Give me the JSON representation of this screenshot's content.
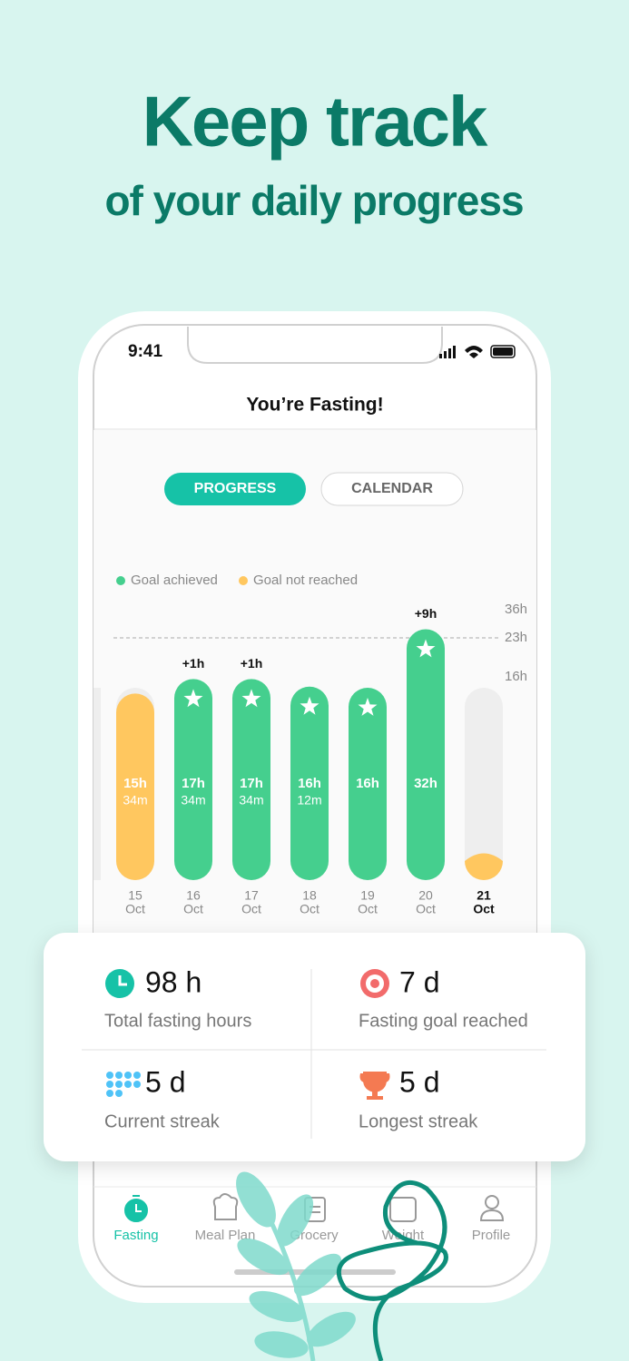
{
  "header": {
    "title": "Keep track",
    "subtitle": "of your daily progress"
  },
  "status_bar": {
    "time": "9:41"
  },
  "screen_title": "You’re Fasting!",
  "tabs": [
    "PROGRESS",
    "CALENDAR"
  ],
  "chart": {
    "legend": [
      {
        "label": "Goal achieved",
        "color": "#45cf8e"
      },
      {
        "label": "Goal not reached",
        "color": "#ffc75f"
      }
    ],
    "yticks": [
      {
        "value": 36,
        "label": "36h"
      },
      {
        "value": 23,
        "label": "23h"
      },
      {
        "value": 16,
        "label": "16h"
      }
    ],
    "bars": [
      {
        "hours": 15.57,
        "text": [
          "15h",
          "34m"
        ],
        "date": [
          "15",
          "Oct"
        ],
        "goal_reached": false
      },
      {
        "hours": 17.57,
        "text": [
          "17h",
          "34m"
        ],
        "date": [
          "16",
          "Oct"
        ],
        "goal_reached": true,
        "extra": "+1h"
      },
      {
        "hours": 17.57,
        "text": [
          "17h",
          "34m"
        ],
        "date": [
          "17",
          "Oct"
        ],
        "goal_reached": true,
        "extra": "+1h"
      },
      {
        "hours": 16.2,
        "text": [
          "16h",
          "12m"
        ],
        "date": [
          "18",
          "Oct"
        ],
        "goal_reached": true
      },
      {
        "hours": 16,
        "text": [
          "16h"
        ],
        "date": [
          "19",
          "Oct"
        ],
        "goal_reached": true
      },
      {
        "hours": 32,
        "text": [
          "32h"
        ],
        "date": [
          "20",
          "Oct"
        ],
        "goal_reached": true,
        "extra": "+9h"
      }
    ],
    "today": {
      "date": [
        "21",
        "Oct"
      ]
    }
  },
  "stats": [
    {
      "value": "98 h",
      "label": "Total fasting hours"
    },
    {
      "value": "7 d",
      "label": "Fasting goal reached"
    },
    {
      "value": "5 d",
      "label": "Current streak"
    },
    {
      "value": "5 d",
      "label": "Longest streak"
    }
  ],
  "nav": [
    "Fasting",
    "Meal Plan",
    "Grocery",
    "Weight",
    "Profile"
  ]
}
